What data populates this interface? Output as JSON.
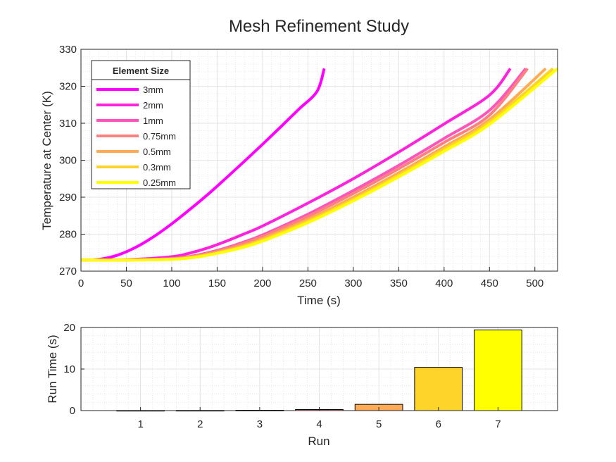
{
  "figure": {
    "title": "Mesh Refinement Study"
  },
  "chart_data": [
    {
      "type": "line",
      "title": "Mesh Refinement Study",
      "xlabel": "Time (s)",
      "ylabel": "Temperature at Center (K)",
      "xlim": [
        0,
        525
      ],
      "ylim": [
        270,
        330
      ],
      "xticks": [
        0,
        50,
        100,
        150,
        200,
        250,
        300,
        350,
        400,
        450,
        500
      ],
      "yticks": [
        270,
        280,
        290,
        300,
        310,
        320,
        330
      ],
      "grid": true,
      "minor_grid": true,
      "legend": {
        "title": "Element Size",
        "placement": "top-left"
      },
      "series": [
        {
          "name": "3mm",
          "color": "#ff00ff",
          "x": [
            0,
            20,
            40,
            60,
            80,
            100,
            120,
            140,
            160,
            180,
            200,
            220,
            240,
            260,
            268
          ],
          "y": [
            273,
            273.2,
            274.3,
            276.4,
            279.3,
            282.8,
            286.7,
            290.8,
            295.2,
            299.7,
            304.3,
            309,
            313.8,
            318.6,
            324.8
          ]
        },
        {
          "name": "2mm",
          "color": "#ff22dd",
          "x": [
            0,
            50,
            100,
            120,
            140,
            160,
            180,
            200,
            250,
            300,
            350,
            400,
            450,
            473
          ],
          "y": [
            273,
            273.1,
            273.9,
            274.9,
            276.3,
            278.1,
            280.1,
            282.2,
            288.4,
            295,
            302.2,
            309.8,
            317.6,
            324.8
          ]
        },
        {
          "name": "1mm",
          "color": "#ff55bb",
          "x": [
            0,
            50,
            100,
            125,
            150,
            175,
            200,
            250,
            300,
            350,
            400,
            450,
            490
          ],
          "y": [
            273,
            273,
            273.4,
            274.2,
            275.6,
            277.5,
            279.8,
            285.4,
            291.8,
            298.6,
            305.9,
            313.5,
            324.8
          ]
        },
        {
          "name": "0.75mm",
          "color": "#ff8080",
          "x": [
            0,
            50,
            100,
            125,
            150,
            175,
            200,
            250,
            300,
            350,
            400,
            450,
            492
          ],
          "y": [
            273,
            273,
            273.4,
            274.1,
            275.4,
            277.2,
            279.4,
            284.8,
            291,
            297.7,
            304.8,
            312.2,
            324.8
          ]
        },
        {
          "name": "0.5mm",
          "color": "#ffaa55",
          "x": [
            0,
            50,
            100,
            125,
            150,
            175,
            200,
            250,
            300,
            350,
            400,
            450,
            512
          ],
          "y": [
            273,
            273,
            273.3,
            273.9,
            275.1,
            276.7,
            278.8,
            284,
            290,
            296.6,
            303.6,
            311,
            324.8
          ]
        },
        {
          "name": "0.3mm",
          "color": "#ffd42a",
          "x": [
            0,
            50,
            100,
            125,
            150,
            175,
            200,
            250,
            300,
            350,
            400,
            450,
            520
          ],
          "y": [
            273,
            273,
            273.2,
            273.8,
            274.9,
            276.4,
            278.4,
            283.5,
            289.4,
            296,
            303,
            310.3,
            324.8
          ]
        },
        {
          "name": "0.25mm",
          "color": "#ffff00",
          "x": [
            0,
            50,
            100,
            125,
            150,
            175,
            200,
            250,
            300,
            350,
            400,
            450,
            525
          ],
          "y": [
            273,
            273,
            273.2,
            273.7,
            274.8,
            276.2,
            278.1,
            283.1,
            289,
            295.5,
            302.4,
            309.7,
            324.8
          ]
        }
      ]
    },
    {
      "type": "bar",
      "title": "",
      "xlabel": "Run",
      "ylabel": "Run Time (s)",
      "categories": [
        "1",
        "2",
        "3",
        "4",
        "5",
        "6",
        "7"
      ],
      "values": [
        0.02,
        0.03,
        0.08,
        0.25,
        1.5,
        10.4,
        19.4
      ],
      "colors": [
        "#ff00ff",
        "#ff22dd",
        "#ff55bb",
        "#ff8080",
        "#ffaa55",
        "#ffd42a",
        "#ffff00"
      ],
      "xlim": [
        0,
        8
      ],
      "ylim": [
        0,
        20
      ],
      "yticks": [
        0,
        10,
        20
      ],
      "grid": true,
      "minor_grid": true
    }
  ]
}
